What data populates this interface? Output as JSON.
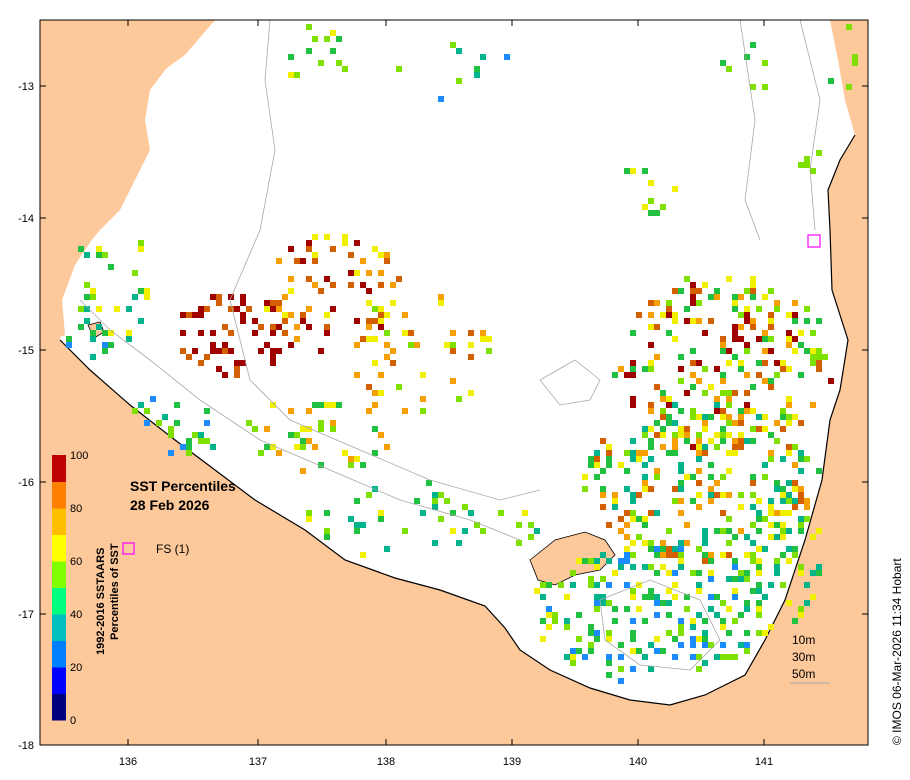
{
  "map": {
    "title_line1": "SST Percentiles",
    "title_line2": "28 Feb 2026",
    "legend_marker_label": "FS (1)",
    "credit": "© IMOS 06-Mar-2026 11:34 Hobart",
    "x_ticks": [
      "136",
      "137",
      "138",
      "139",
      "140",
      "141"
    ],
    "y_ticks": [
      "-13",
      "-14",
      "-15",
      "-16",
      "-17",
      "-18"
    ],
    "depth_contours": [
      "10m",
      "30m",
      "50m"
    ],
    "colorbar": {
      "label_line1": "1992-2016 SSTAARS",
      "label_line2": "Percentiles of SST",
      "ticks": [
        "0",
        "20",
        "40",
        "60",
        "80",
        "100"
      ],
      "colors": [
        "#00007f",
        "#0000ff",
        "#007fff",
        "#00bfbf",
        "#00ff7f",
        "#7fff00",
        "#ffff00",
        "#ffbf00",
        "#ff7f00",
        "#bf0000"
      ]
    },
    "colors": {
      "land": "#fdc89a",
      "frame": "#000000",
      "marker": "#ff00ff",
      "red": "#a00000",
      "darkorange": "#d45f00",
      "orange": "#f5a000",
      "yellow": "#f0f000",
      "lime": "#7fe000",
      "green": "#22c040",
      "teal": "#00b38a",
      "blue": "#1a8cff",
      "navy": "#0000a0"
    }
  }
}
